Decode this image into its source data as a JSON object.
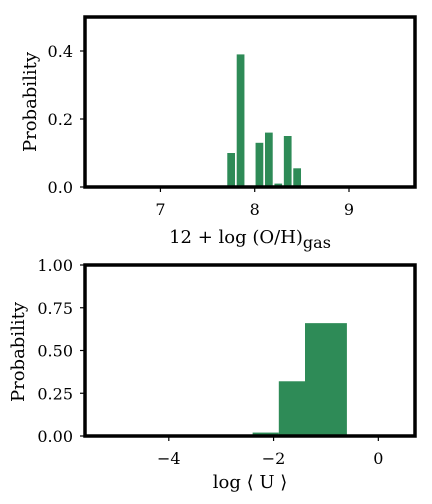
{
  "chart_data": [
    {
      "type": "bar",
      "title": "",
      "xlabel": "12 + log (O/H)",
      "xlabel_sub": "gas",
      "ylabel": "Probability",
      "xlim": [
        6.2,
        9.7
      ],
      "ylim": [
        0,
        0.5
      ],
      "xticks": [
        7,
        8,
        9
      ],
      "yticks": [
        0.0,
        0.2,
        0.4
      ],
      "ytick_labels": [
        "0.0",
        "0.2",
        "0.4"
      ],
      "bin_width": 0.1,
      "bins": [
        {
          "x": 7.75,
          "value": 0.1
        },
        {
          "x": 7.85,
          "value": 0.39
        },
        {
          "x": 8.05,
          "value": 0.13
        },
        {
          "x": 8.15,
          "value": 0.16
        },
        {
          "x": 8.25,
          "value": 0.01
        },
        {
          "x": 8.35,
          "value": 0.15
        },
        {
          "x": 8.45,
          "value": 0.055
        }
      ],
      "grid": false,
      "color": "#2e8b57"
    },
    {
      "type": "bar",
      "title": "",
      "xlabel": "log ⟨ U ⟩",
      "ylabel": "Probability",
      "xlim": [
        -5.6,
        0.7
      ],
      "ylim": [
        0,
        1.0
      ],
      "xticks": [
        -4,
        -2,
        0
      ],
      "xtick_labels": [
        "−4",
        "−2",
        "0"
      ],
      "yticks": [
        0.0,
        0.25,
        0.5,
        0.75,
        1.0
      ],
      "ytick_labels": [
        "0.00",
        "0.25",
        "0.50",
        "0.75",
        "1.00"
      ],
      "bins": [
        {
          "x0": -2.4,
          "x1": -1.9,
          "value": 0.02
        },
        {
          "x0": -1.9,
          "x1": -1.4,
          "value": 0.32
        },
        {
          "x0": -1.4,
          "x1": -0.6,
          "value": 0.66
        }
      ],
      "grid": false,
      "color": "#2e8b57"
    }
  ]
}
